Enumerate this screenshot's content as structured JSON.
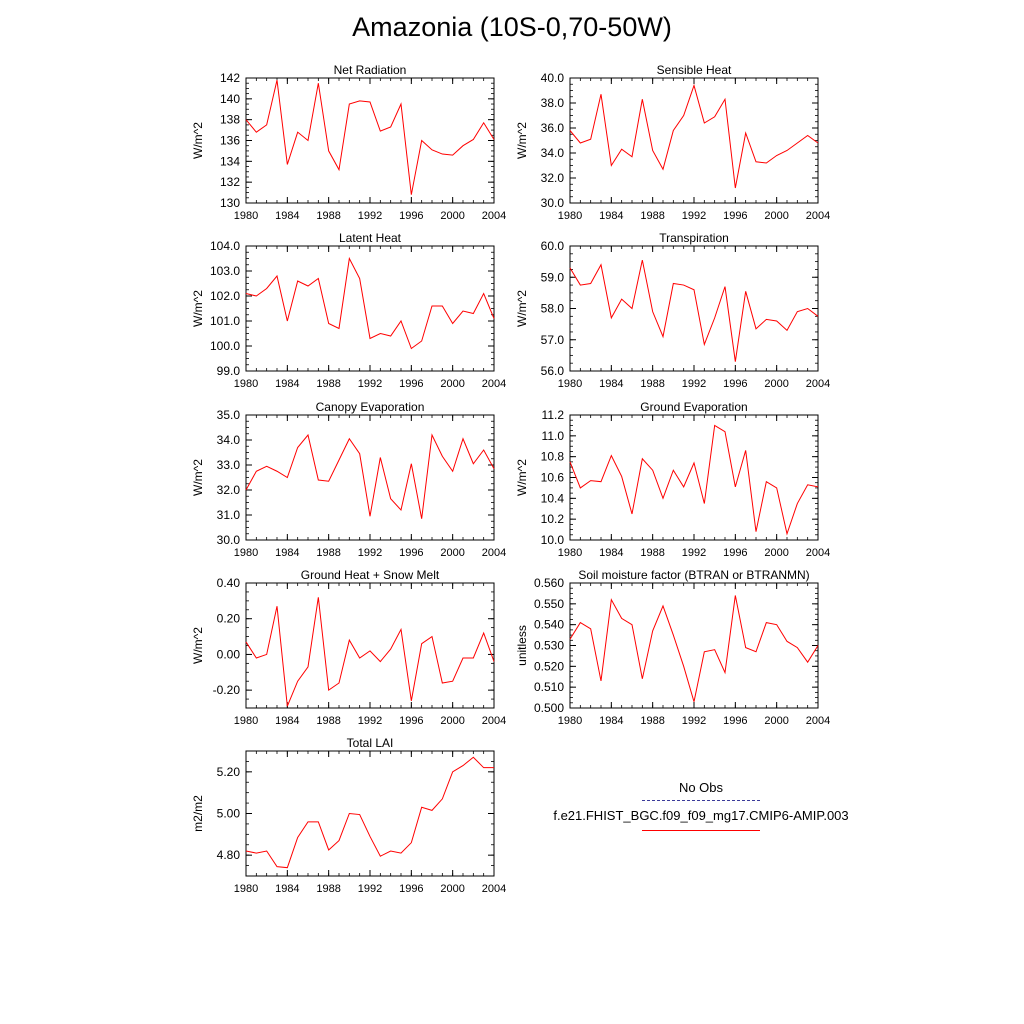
{
  "title": "Amazonia (10S-0,70-50W)",
  "legend": {
    "obs_label": "No Obs",
    "obs_color": "#3b3b9a",
    "model_label": "f.e21.FHIST_BGC.f09_f09_mg17.CMIP6-AMIP.003",
    "model_color": "#ff0000"
  },
  "line_color": "#ff0000",
  "chart_data": [
    {
      "type": "line",
      "title": "Net Radiation",
      "ylabel": "W/m^2",
      "xlim": [
        1980,
        2004
      ],
      "ylim": [
        130,
        142
      ],
      "yticks": [
        130,
        132,
        134,
        136,
        138,
        140,
        142
      ],
      "ytick_labels": [
        "130",
        "132",
        "134",
        "136",
        "138",
        "140",
        "142"
      ],
      "xticks": [
        1980,
        1984,
        1988,
        1992,
        1996,
        2000,
        2004
      ],
      "xtick_labels": [
        "1980",
        "1984",
        "1988",
        "1992",
        "1996",
        "2000",
        "2004"
      ],
      "x": [
        1980,
        1981,
        1982,
        1983,
        1984,
        1985,
        1986,
        1987,
        1988,
        1989,
        1990,
        1991,
        1992,
        1993,
        1994,
        1995,
        1996,
        1997,
        1998,
        1999,
        2000,
        2001,
        2002,
        2003,
        2004
      ],
      "y": [
        138.0,
        136.8,
        137.5,
        141.8,
        133.7,
        136.8,
        136.0,
        141.5,
        135.0,
        133.2,
        139.5,
        139.8,
        139.7,
        136.9,
        137.3,
        139.5,
        130.8,
        136.0,
        135.1,
        134.7,
        134.6,
        135.5,
        136.1,
        137.7,
        136.1
      ]
    },
    {
      "type": "line",
      "title": "Sensible Heat",
      "ylabel": "W/m^2",
      "xlim": [
        1980,
        2004
      ],
      "ylim": [
        30.0,
        40.0
      ],
      "yticks": [
        30.0,
        32.0,
        34.0,
        36.0,
        38.0,
        40.0
      ],
      "ytick_labels": [
        "30.0",
        "32.0",
        "34.0",
        "36.0",
        "38.0",
        "40.0"
      ],
      "xticks": [
        1980,
        1984,
        1988,
        1992,
        1996,
        2000,
        2004
      ],
      "xtick_labels": [
        "1980",
        "1984",
        "1988",
        "1992",
        "1996",
        "2000",
        "2004"
      ],
      "x": [
        1980,
        1981,
        1982,
        1983,
        1984,
        1985,
        1986,
        1987,
        1988,
        1989,
        1990,
        1991,
        1992,
        1993,
        1994,
        1995,
        1996,
        1997,
        1998,
        1999,
        2000,
        2001,
        2002,
        2003,
        2004
      ],
      "y": [
        35.8,
        34.8,
        35.1,
        38.7,
        33.0,
        34.3,
        33.7,
        38.3,
        34.2,
        32.7,
        35.8,
        37.0,
        39.4,
        36.4,
        36.9,
        38.3,
        31.2,
        35.6,
        33.3,
        33.2,
        33.8,
        34.2,
        34.8,
        35.4,
        34.8
      ]
    },
    {
      "type": "line",
      "title": "Latent Heat",
      "ylabel": "W/m^2",
      "xlim": [
        1980,
        2004
      ],
      "ylim": [
        99.0,
        104.0
      ],
      "yticks": [
        99.0,
        100.0,
        101.0,
        102.0,
        103.0,
        104.0
      ],
      "ytick_labels": [
        "99.0",
        "100.0",
        "101.0",
        "102.0",
        "103.0",
        "104.0"
      ],
      "xticks": [
        1980,
        1984,
        1988,
        1992,
        1996,
        2000,
        2004
      ],
      "xtick_labels": [
        "1980",
        "1984",
        "1988",
        "1992",
        "1996",
        "2000",
        "2004"
      ],
      "x": [
        1980,
        1981,
        1982,
        1983,
        1984,
        1985,
        1986,
        1987,
        1988,
        1989,
        1990,
        1991,
        1992,
        1993,
        1994,
        1995,
        1996,
        1997,
        1998,
        1999,
        2000,
        2001,
        2002,
        2003,
        2004
      ],
      "y": [
        102.1,
        102.0,
        102.3,
        102.8,
        101.0,
        102.6,
        102.4,
        102.7,
        100.9,
        100.7,
        103.5,
        102.7,
        100.3,
        100.5,
        100.4,
        101.0,
        99.9,
        100.2,
        101.6,
        101.6,
        100.9,
        101.4,
        101.3,
        102.1,
        101.1
      ]
    },
    {
      "type": "line",
      "title": "Transpiration",
      "ylabel": "W/m^2",
      "xlim": [
        1980,
        2004
      ],
      "ylim": [
        56.0,
        60.0
      ],
      "yticks": [
        56.0,
        57.0,
        58.0,
        59.0,
        60.0
      ],
      "ytick_labels": [
        "56.0",
        "57.0",
        "58.0",
        "59.0",
        "60.0"
      ],
      "xticks": [
        1980,
        1984,
        1988,
        1992,
        1996,
        2000,
        2004
      ],
      "xtick_labels": [
        "1980",
        "1984",
        "1988",
        "1992",
        "1996",
        "2000",
        "2004"
      ],
      "x": [
        1980,
        1981,
        1982,
        1983,
        1984,
        1985,
        1986,
        1987,
        1988,
        1989,
        1990,
        1991,
        1992,
        1993,
        1994,
        1995,
        1996,
        1997,
        1998,
        1999,
        2000,
        2001,
        2002,
        2003,
        2004
      ],
      "y": [
        59.3,
        58.75,
        58.8,
        59.4,
        57.7,
        58.3,
        58.0,
        59.55,
        57.9,
        57.1,
        58.8,
        58.75,
        58.6,
        56.85,
        57.7,
        58.7,
        56.3,
        58.55,
        57.35,
        57.65,
        57.6,
        57.3,
        57.9,
        58.0,
        57.75
      ]
    },
    {
      "type": "line",
      "title": "Canopy Evaporation",
      "ylabel": "W/m^2",
      "xlim": [
        1980,
        2004
      ],
      "ylim": [
        30.0,
        35.0
      ],
      "yticks": [
        30.0,
        31.0,
        32.0,
        33.0,
        34.0,
        35.0
      ],
      "ytick_labels": [
        "30.0",
        "31.0",
        "32.0",
        "33.0",
        "34.0",
        "35.0"
      ],
      "xticks": [
        1980,
        1984,
        1988,
        1992,
        1996,
        2000,
        2004
      ],
      "xtick_labels": [
        "1980",
        "1984",
        "1988",
        "1992",
        "1996",
        "2000",
        "2004"
      ],
      "x": [
        1980,
        1981,
        1982,
        1983,
        1984,
        1985,
        1986,
        1987,
        1988,
        1989,
        1990,
        1991,
        1992,
        1993,
        1994,
        1995,
        1996,
        1997,
        1998,
        1999,
        2000,
        2001,
        2002,
        2003,
        2004
      ],
      "y": [
        32.0,
        32.75,
        32.95,
        32.75,
        32.5,
        33.7,
        34.2,
        32.4,
        32.35,
        33.2,
        34.05,
        33.45,
        30.95,
        33.3,
        31.65,
        31.2,
        33.05,
        30.85,
        34.2,
        33.35,
        32.75,
        34.05,
        33.05,
        33.6,
        32.85
      ]
    },
    {
      "type": "line",
      "title": "Ground Evaporation",
      "ylabel": "W/m^2",
      "xlim": [
        1980,
        2004
      ],
      "ylim": [
        10.0,
        11.2
      ],
      "yticks": [
        10.0,
        10.2,
        10.4,
        10.6,
        10.8,
        11.0,
        11.2
      ],
      "ytick_labels": [
        "10.0",
        "10.2",
        "10.4",
        "10.6",
        "10.8",
        "11.0",
        "11.2"
      ],
      "xticks": [
        1980,
        1984,
        1988,
        1992,
        1996,
        2000,
        2004
      ],
      "xtick_labels": [
        "1980",
        "1984",
        "1988",
        "1992",
        "1996",
        "2000",
        "2004"
      ],
      "x": [
        1980,
        1981,
        1982,
        1983,
        1984,
        1985,
        1986,
        1987,
        1988,
        1989,
        1990,
        1991,
        1992,
        1993,
        1994,
        1995,
        1996,
        1997,
        1998,
        1999,
        2000,
        2001,
        2002,
        2003,
        2004
      ],
      "y": [
        10.75,
        10.5,
        10.57,
        10.56,
        10.81,
        10.61,
        10.25,
        10.78,
        10.67,
        10.4,
        10.67,
        10.51,
        10.74,
        10.35,
        11.1,
        11.04,
        10.51,
        10.86,
        10.08,
        10.56,
        10.5,
        10.06,
        10.35,
        10.53,
        10.51
      ]
    },
    {
      "type": "line",
      "title": "Ground Heat + Snow Melt",
      "ylabel": "W/m^2",
      "xlim": [
        1980,
        2004
      ],
      "ylim": [
        -0.3,
        0.4
      ],
      "yticks": [
        -0.2,
        0.0,
        0.2,
        0.4
      ],
      "ytick_labels": [
        "-0.20",
        "0.00",
        "0.20",
        "0.40"
      ],
      "xticks": [
        1980,
        1984,
        1988,
        1992,
        1996,
        2000,
        2004
      ],
      "xtick_labels": [
        "1980",
        "1984",
        "1988",
        "1992",
        "1996",
        "2000",
        "2004"
      ],
      "x": [
        1980,
        1981,
        1982,
        1983,
        1984,
        1985,
        1986,
        1987,
        1988,
        1989,
        1990,
        1991,
        1992,
        1993,
        1994,
        1995,
        1996,
        1997,
        1998,
        1999,
        2000,
        2001,
        2002,
        2003,
        2004
      ],
      "y": [
        0.07,
        -0.02,
        0.0,
        0.27,
        -0.29,
        -0.15,
        -0.07,
        0.32,
        -0.2,
        -0.16,
        0.08,
        -0.02,
        0.02,
        -0.04,
        0.03,
        0.14,
        -0.26,
        0.06,
        0.1,
        -0.16,
        -0.15,
        -0.02,
        -0.02,
        0.12,
        -0.04
      ]
    },
    {
      "type": "line",
      "title": "Soil moisture factor (BTRAN or BTRANMN)",
      "ylabel": "unitless",
      "xlim": [
        1980,
        2004
      ],
      "ylim": [
        0.5,
        0.56
      ],
      "yticks": [
        0.5,
        0.51,
        0.52,
        0.53,
        0.54,
        0.55,
        0.56
      ],
      "ytick_labels": [
        "0.500",
        "0.510",
        "0.520",
        "0.530",
        "0.540",
        "0.550",
        "0.560"
      ],
      "xticks": [
        1980,
        1984,
        1988,
        1992,
        1996,
        2000,
        2004
      ],
      "xtick_labels": [
        "1980",
        "1984",
        "1988",
        "1992",
        "1996",
        "2000",
        "2004"
      ],
      "x": [
        1980,
        1981,
        1982,
        1983,
        1984,
        1985,
        1986,
        1987,
        1988,
        1989,
        1990,
        1991,
        1992,
        1993,
        1994,
        1995,
        1996,
        1997,
        1998,
        1999,
        2000,
        2001,
        2002,
        2003,
        2004
      ],
      "y": [
        0.533,
        0.541,
        0.538,
        0.513,
        0.552,
        0.543,
        0.54,
        0.514,
        0.537,
        0.549,
        0.535,
        0.52,
        0.503,
        0.527,
        0.528,
        0.517,
        0.554,
        0.529,
        0.527,
        0.541,
        0.54,
        0.532,
        0.529,
        0.522,
        0.53
      ]
    },
    {
      "type": "line",
      "title": "Total LAI",
      "ylabel": "m2/m2",
      "xlim": [
        1980,
        2004
      ],
      "ylim": [
        4.7,
        5.3
      ],
      "yticks": [
        4.8,
        5.0,
        5.2
      ],
      "ytick_labels": [
        "4.80",
        "5.00",
        "5.20"
      ],
      "xticks": [
        1980,
        1984,
        1988,
        1992,
        1996,
        2000,
        2004
      ],
      "xtick_labels": [
        "1980",
        "1984",
        "1988",
        "1992",
        "1996",
        "2000",
        "2004"
      ],
      "x": [
        1980,
        1981,
        1982,
        1983,
        1984,
        1985,
        1986,
        1987,
        1988,
        1989,
        1990,
        1991,
        1992,
        1993,
        1994,
        1995,
        1996,
        1997,
        1998,
        1999,
        2000,
        2001,
        2002,
        2003,
        2004
      ],
      "y": [
        4.82,
        4.81,
        4.82,
        4.745,
        4.74,
        4.885,
        4.96,
        4.96,
        4.825,
        4.87,
        5.0,
        4.995,
        4.89,
        4.795,
        4.82,
        4.81,
        4.86,
        5.03,
        5.015,
        5.07,
        5.2,
        5.23,
        5.27,
        5.22,
        5.22
      ]
    }
  ]
}
